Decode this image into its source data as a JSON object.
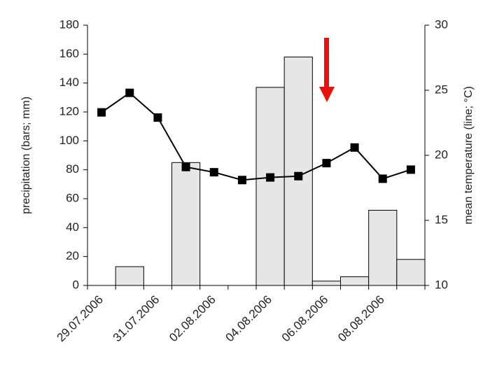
{
  "chart_data": {
    "type": "bar",
    "categories": [
      "29.07.2006",
      null,
      "31.07.2006",
      null,
      "02.08.2006",
      null,
      "04.08.2006",
      null,
      "06.08.2006",
      null,
      "08.08.2006",
      null
    ],
    "series": [
      {
        "type": "bar",
        "color": "#e6e6e6",
        "values": [
          0,
          13,
          0,
          85,
          0,
          0,
          137,
          158,
          3,
          6,
          52,
          18
        ]
      },
      {
        "type": "line",
        "axis": "y2",
        "color": "#000000",
        "values": [
          23.3,
          24.8,
          22.9,
          19.1,
          18.7,
          18.1,
          18.3,
          18.4,
          19.4,
          20.6,
          18.2,
          18.9
        ]
      }
    ],
    "ylabel": "precipitation  (bars; mm)",
    "y2label": "mean temperature (line; °C)",
    "ylim": [
      0,
      180
    ],
    "yticks": [
      0,
      20,
      40,
      60,
      80,
      100,
      120,
      140,
      160,
      180
    ],
    "y2lim": [
      10,
      30
    ],
    "y2ticks": [
      10,
      15,
      20,
      25,
      30
    ]
  }
}
